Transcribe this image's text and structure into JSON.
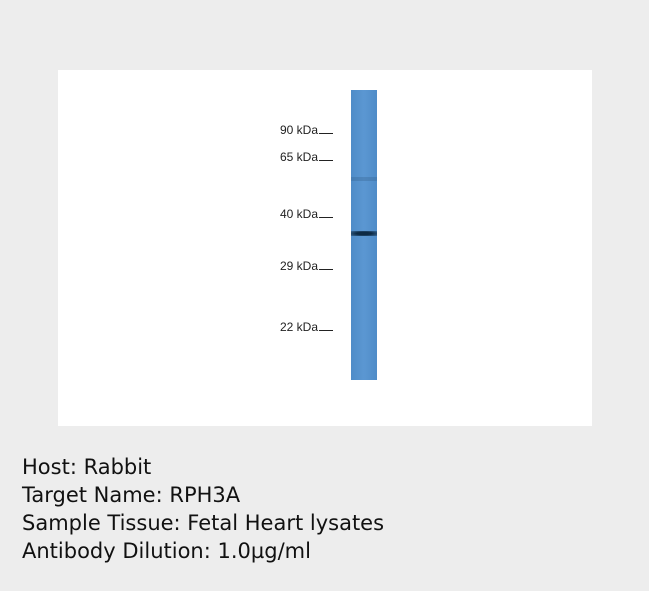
{
  "blot": {
    "markers": [
      "90 kDa",
      "65 kDa",
      "40 kDa",
      "29 kDa",
      "22 kDa"
    ]
  },
  "caption": [
    "Host: Rabbit",
    "Target Name: RPH3A",
    "Sample Tissue: Fetal Heart lysates",
    "Antibody Dilution: 1.0µg/ml"
  ]
}
